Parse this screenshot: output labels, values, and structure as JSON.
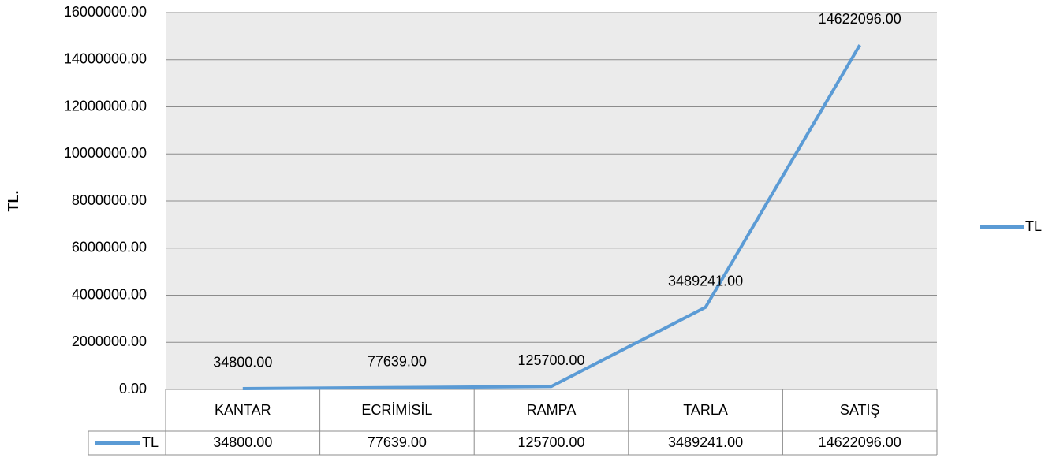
{
  "chart_data": {
    "type": "line",
    "y_label": "TL.",
    "categories": [
      "KANTAR",
      "ECRİMİSİL",
      "RAMPA",
      "TARLA",
      "SATIŞ"
    ],
    "series": [
      {
        "name": "TL",
        "color": "#5b9bd5",
        "values": [
          34800,
          77639,
          125700,
          3489241,
          14622096
        ],
        "value_labels": [
          "34800.00",
          "77639.00",
          "125700.00",
          "3489241.00",
          "14622096.00"
        ]
      }
    ],
    "ylim": [
      0,
      16000000
    ],
    "yticks": [
      {
        "value": 0,
        "label": "0.00"
      },
      {
        "value": 2000000,
        "label": "2000000.00"
      },
      {
        "value": 4000000,
        "label": "4000000.00"
      },
      {
        "value": 6000000,
        "label": "6000000.00"
      },
      {
        "value": 8000000,
        "label": "8000000.00"
      },
      {
        "value": 10000000,
        "label": "10000000.00"
      },
      {
        "value": 12000000,
        "label": "12000000.00"
      },
      {
        "value": 14000000,
        "label": "14000000.00"
      },
      {
        "value": 16000000,
        "label": "16000000.00"
      }
    ],
    "grid": true,
    "legend": "right",
    "data_table": true
  }
}
